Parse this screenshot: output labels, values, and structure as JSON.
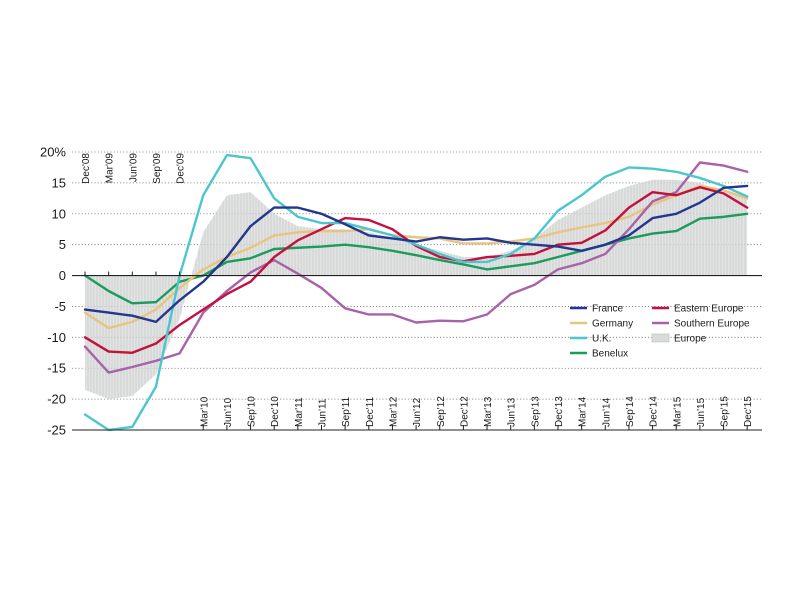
{
  "chart_data": {
    "type": "line",
    "y_axis": {
      "ticks": [
        "20%",
        "15",
        "10",
        "5",
        "0",
        "-5",
        "-10",
        "-15",
        "-20",
        "-25"
      ],
      "tick_values": [
        20,
        15,
        10,
        5,
        0,
        -5,
        -10,
        -15,
        -20,
        -25
      ],
      "ylim": [
        -25,
        20
      ],
      "grid": "dotted"
    },
    "x_axis": {
      "xlim": [
        0,
        28
      ],
      "top_labels": [
        {
          "label": "Dec'08",
          "x": 0
        },
        {
          "label": "Mar'09",
          "x": 1
        },
        {
          "label": "Jun'09",
          "x": 2
        },
        {
          "label": "Sep'09",
          "x": 3
        },
        {
          "label": "Dec'09",
          "x": 4
        }
      ],
      "bottom_labels": [
        {
          "label": "Mar'10",
          "x": 5
        },
        {
          "label": "Jun'10",
          "x": 6
        },
        {
          "label": "Sep'10",
          "x": 7
        },
        {
          "label": "Dec'10",
          "x": 8
        },
        {
          "label": "Mar'11",
          "x": 9
        },
        {
          "label": "Jun'11",
          "x": 10
        },
        {
          "label": "Sep'11",
          "x": 11
        },
        {
          "label": "Dec'11",
          "x": 12
        },
        {
          "label": "Mar'12",
          "x": 13
        },
        {
          "label": "Jun'12",
          "x": 14
        },
        {
          "label": "Sep'12",
          "x": 15
        },
        {
          "label": "Dec'12",
          "x": 16
        },
        {
          "label": "Mar'13",
          "x": 17
        },
        {
          "label": "Jun'13",
          "x": 18
        },
        {
          "label": "Sep'13",
          "x": 19
        },
        {
          "label": "Dec'13",
          "x": 20
        },
        {
          "label": "Mar'14",
          "x": 21
        },
        {
          "label": "Jun'14",
          "x": 22
        },
        {
          "label": "Sep'14",
          "x": 23
        },
        {
          "label": "Dec'14",
          "x": 24
        },
        {
          "label": "Mar'15",
          "x": 25
        },
        {
          "label": "Jun'15",
          "x": 26
        },
        {
          "label": "Sep'15",
          "x": 27
        },
        {
          "label": "Dec'15",
          "x": 28
        }
      ]
    },
    "area": {
      "name": "Europe",
      "color": "#d9dbdb",
      "x": [
        0,
        1,
        2,
        3,
        4,
        5,
        6,
        7,
        8,
        9,
        10,
        11,
        12,
        13,
        14,
        15,
        16,
        17,
        18,
        19,
        20,
        21,
        22,
        23,
        24,
        25,
        26,
        27,
        28
      ],
      "values": [
        -18.5,
        -20,
        -19.5,
        -16,
        -7,
        7,
        13,
        13.5,
        10,
        8,
        7.5,
        7.5,
        7,
        6,
        5,
        4,
        3,
        3,
        4,
        6,
        9,
        11,
        13,
        14.5,
        15.5,
        15.5,
        15,
        13.5,
        12.5
      ]
    },
    "series": [
      {
        "name": "France",
        "color": "#23378f",
        "x": [
          0,
          1,
          2,
          3,
          4,
          5,
          6,
          7,
          8,
          9,
          10,
          11,
          12,
          13,
          14,
          15,
          16,
          17,
          18,
          19,
          20,
          21,
          22,
          23,
          24,
          25,
          26,
          27,
          28
        ],
        "values": [
          -5.5,
          -6,
          -6.5,
          -7.5,
          -4,
          -1,
          3,
          8,
          11,
          11,
          10,
          8.3,
          6.5,
          6,
          5.5,
          6.2,
          5.8,
          6,
          5.3,
          5,
          4.7,
          4,
          5,
          6.5,
          9.3,
          10,
          11.8,
          14.2,
          14.5
        ]
      },
      {
        "name": "Germany",
        "color": "#e9c47e",
        "x": [
          0,
          1,
          2,
          3,
          4,
          5,
          6,
          7,
          8,
          9,
          10,
          11,
          12,
          13,
          14,
          15,
          16,
          17,
          18,
          19,
          20,
          21,
          22,
          23,
          24,
          25,
          26,
          27,
          28
        ],
        "values": [
          -6,
          -8.5,
          -7.5,
          -5.5,
          -2,
          1,
          3,
          4.5,
          6.5,
          7,
          7.2,
          7.2,
          7.5,
          6.5,
          6.2,
          6,
          5.2,
          5.2,
          5.5,
          6,
          7,
          7.8,
          8.5,
          9.5,
          11.5,
          13,
          14.5,
          13.8,
          12.5
        ]
      },
      {
        "name": "U.K.",
        "color": "#4cc6cd",
        "x": [
          0,
          1,
          2,
          3,
          4,
          5,
          6,
          7,
          8,
          9,
          10,
          11,
          12,
          13,
          14,
          15,
          16,
          17,
          18,
          19,
          20,
          21,
          22,
          23,
          24,
          25,
          26,
          27,
          28
        ],
        "values": [
          -22.5,
          -25,
          -24.5,
          -18,
          0,
          13,
          19.5,
          19,
          12.5,
          9.5,
          8.5,
          8.5,
          7.5,
          6.5,
          5,
          3.5,
          2.2,
          2.2,
          3.5,
          6,
          10.5,
          13,
          16,
          17.5,
          17.3,
          16.8,
          15.8,
          14.5,
          12.8
        ]
      },
      {
        "name": "Benelux",
        "color": "#1d9b5d",
        "x": [
          0,
          1,
          2,
          3,
          4,
          5,
          6,
          7,
          8,
          9,
          10,
          11,
          12,
          13,
          14,
          15,
          16,
          17,
          18,
          19,
          20,
          21,
          22,
          23,
          24,
          25,
          26,
          27,
          28
        ],
        "values": [
          0,
          -2.5,
          -4.5,
          -4.3,
          -1,
          0,
          2.2,
          2.8,
          4.3,
          4.5,
          4.7,
          5,
          4.6,
          4,
          3.3,
          2.5,
          1.8,
          1,
          1.5,
          2,
          3,
          4,
          5,
          6,
          6.8,
          7.2,
          9.2,
          9.5,
          10
        ]
      },
      {
        "name": "Eastern Europe",
        "color": "#c3103d",
        "x": [
          0,
          1,
          2,
          3,
          4,
          5,
          6,
          7,
          8,
          9,
          10,
          11,
          12,
          13,
          14,
          15,
          16,
          17,
          18,
          19,
          20,
          21,
          22,
          23,
          24,
          25,
          26,
          27,
          28
        ],
        "values": [
          -10,
          -12.3,
          -12.5,
          -11,
          -8,
          -5.5,
          -3,
          -1,
          3,
          5.7,
          7.5,
          9.3,
          9,
          7.5,
          4.8,
          3,
          2.3,
          3,
          3.2,
          3.5,
          5,
          5.3,
          7.3,
          11,
          13.5,
          13,
          14.3,
          13.3,
          11
        ]
      },
      {
        "name": "Southern Europe",
        "color": "#a862a8",
        "x": [
          0,
          1,
          2,
          3,
          4,
          5,
          6,
          7,
          8,
          9,
          10,
          11,
          12,
          13,
          14,
          15,
          16,
          17,
          18,
          19,
          20,
          21,
          22,
          23,
          24,
          25,
          26,
          27,
          28
        ],
        "values": [
          -11.5,
          -15.7,
          -14.8,
          -13.8,
          -12.6,
          -6,
          -2.5,
          0.5,
          2.5,
          0.3,
          -2,
          -5.3,
          -6.3,
          -6.3,
          -7.6,
          -7.3,
          -7.4,
          -6.3,
          -3,
          -1.5,
          1,
          2,
          3.5,
          7.5,
          12,
          13.5,
          18.3,
          17.8,
          16.8
        ]
      }
    ],
    "legend": {
      "position": "lower-right",
      "entries": [
        {
          "name": "France",
          "color": "#23378f",
          "kind": "line"
        },
        {
          "name": "Eastern Europe",
          "color": "#c3103d",
          "kind": "line"
        },
        {
          "name": "Germany",
          "color": "#e9c47e",
          "kind": "line"
        },
        {
          "name": "Southern Europe",
          "color": "#a862a8",
          "kind": "line"
        },
        {
          "name": "U.K.",
          "color": "#4cc6cd",
          "kind": "line"
        },
        {
          "name": "Europe",
          "color": "#d9dbdb",
          "kind": "area"
        },
        {
          "name": "Benelux",
          "color": "#1d9b5d",
          "kind": "line"
        }
      ]
    }
  }
}
